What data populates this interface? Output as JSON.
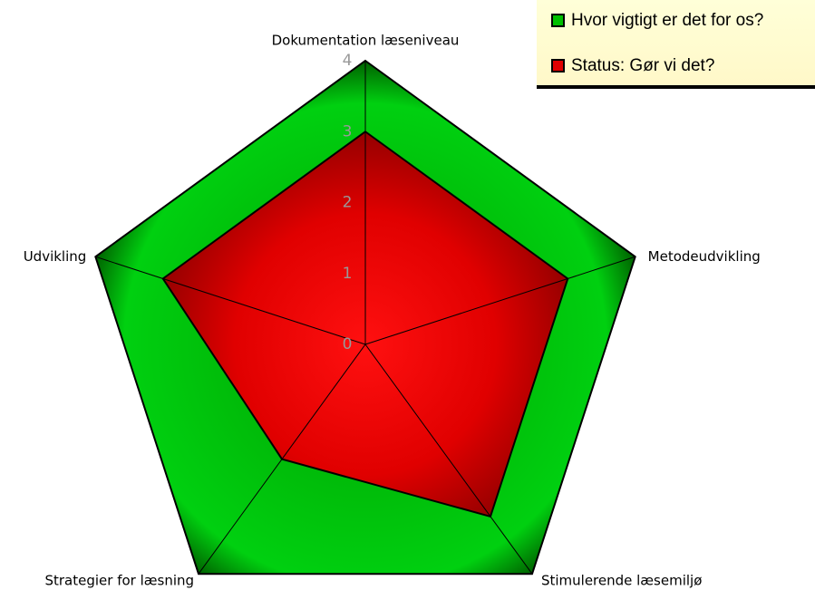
{
  "chart_data": {
    "type": "radar",
    "categories": [
      "Dokumentation læseniveau",
      "Metodeudvikling",
      "Stimulerende læsemiljø",
      "Strategier for læsning",
      "Udvikling"
    ],
    "series": [
      {
        "name": "Hvor vigtigt er det for os?",
        "color": "#00c000",
        "values": [
          4,
          4,
          4,
          4,
          4
        ]
      },
      {
        "name": "Status: Gør vi det?",
        "color": "#e00000",
        "values": [
          3,
          3,
          3,
          2,
          3
        ]
      }
    ],
    "rlim": [
      0,
      4
    ],
    "rticks": [
      0,
      1,
      2,
      3,
      4
    ],
    "legend": "top-right"
  }
}
